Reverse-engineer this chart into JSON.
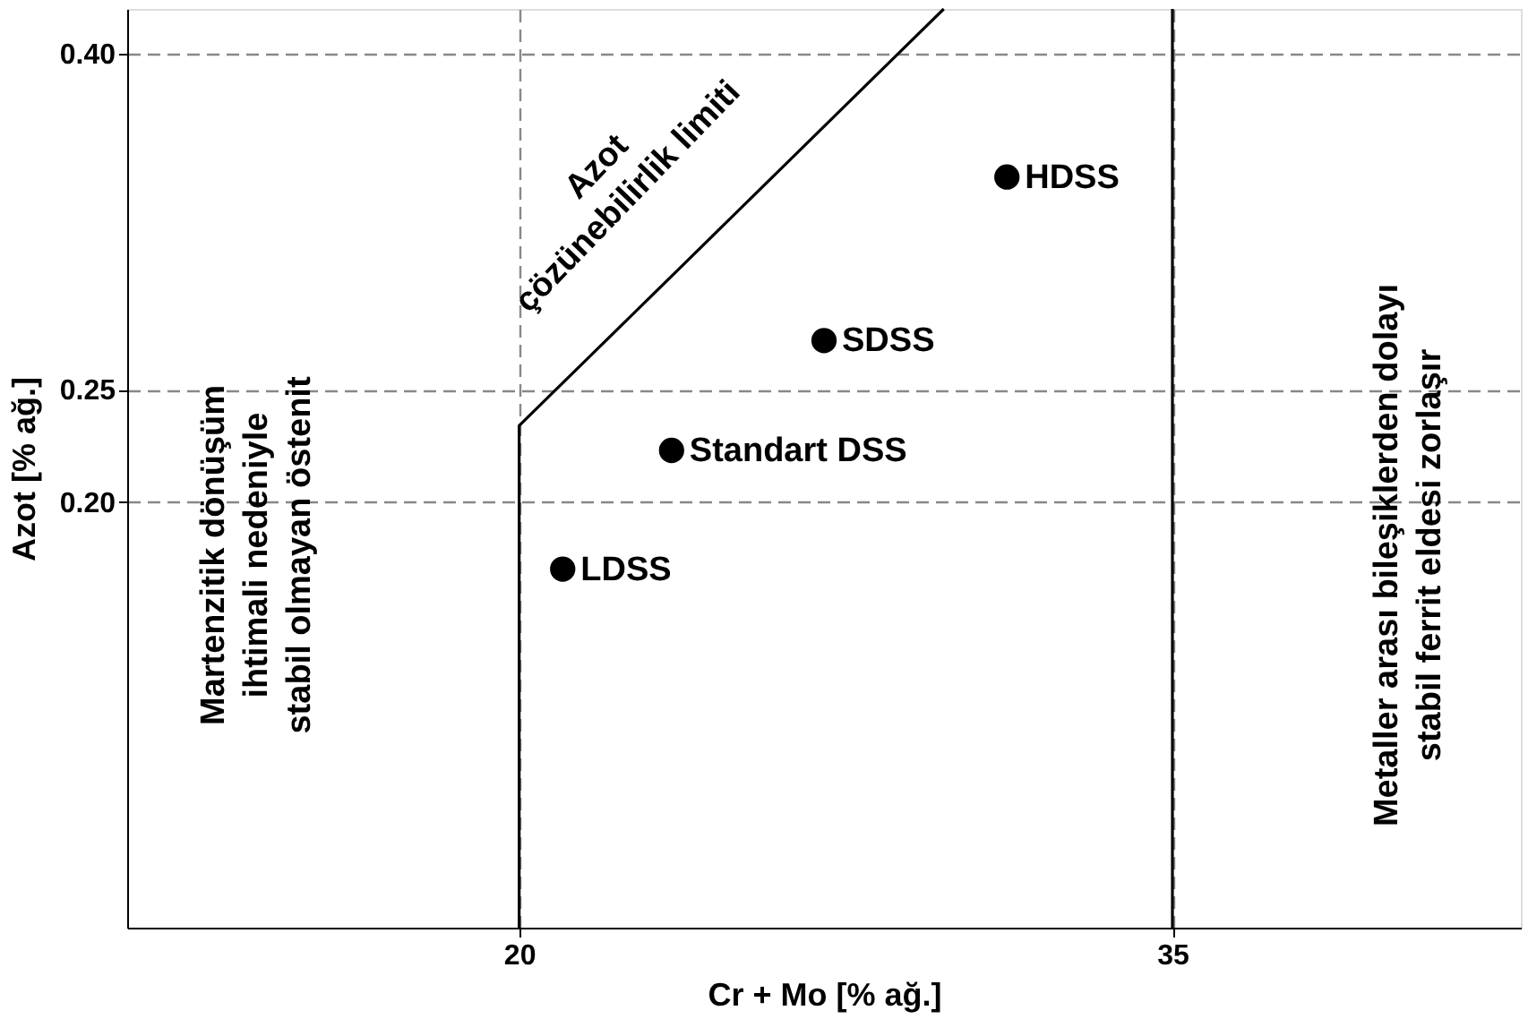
{
  "chart_data": {
    "type": "scatter",
    "xlabel": "Cr + Mo [% ağ.]",
    "ylabel": "Azot [% ağ.]",
    "xlim": [
      11,
      43
    ],
    "ylim": [
      0.01,
      0.42
    ],
    "xticks": [
      20,
      35
    ],
    "yticks": [
      {
        "value": 0.2,
        "label": "0.20"
      },
      {
        "value": 0.25,
        "label": "0.25"
      },
      {
        "value": 0.4,
        "label": "0.40"
      }
    ],
    "grid": true,
    "marker": "circle",
    "series": [
      {
        "name": "LDSS",
        "color": "#000000",
        "x": [
          21
        ],
        "values": [
          0.17
        ]
      },
      {
        "name": "Standart DSS",
        "color": "#000000",
        "x": [
          23.5
        ],
        "values": [
          0.223
        ]
      },
      {
        "name": "SDSS",
        "color": "#000000",
        "x": [
          27
        ],
        "values": [
          0.272
        ]
      },
      {
        "name": "HDSS",
        "color": "#000000",
        "x": [
          31.2
        ],
        "values": [
          0.345
        ]
      },
      {
        "type": "line",
        "marker": "none",
        "line_style": "solid",
        "color": "#000000",
        "x": [
          20,
          20,
          29.75
        ],
        "values": [
          0.01,
          0.234,
          0.42
        ]
      }
    ],
    "ref_lines": [
      {
        "axis": "x",
        "value": 35,
        "color": "#000000",
        "line_style": "solid"
      }
    ],
    "annotations": [
      "Martenzitik dönüşüm ihtimali nedeniyle stabil olmayan östenit",
      "Metaller arası bileşiklerden dolayı stabil ferrit eldesi zorlaşır",
      "Azot çözünebilirlik limiti"
    ]
  }
}
